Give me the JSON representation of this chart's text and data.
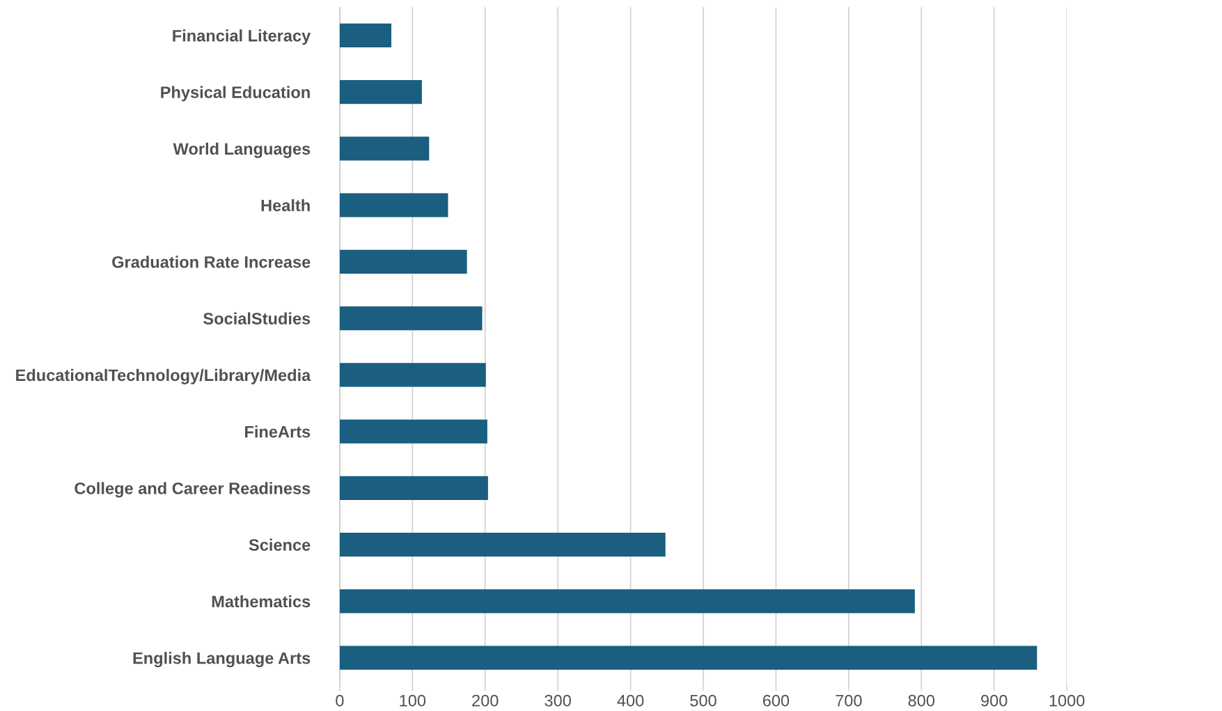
{
  "chart_data": {
    "type": "bar",
    "orientation": "horizontal",
    "categories": [
      "Financial Literacy",
      "Physical Education",
      "World Languages",
      "Health",
      "Graduation Rate Increase",
      "SocialStudies",
      "EducationalTechnology/Library/Media",
      "FineArts",
      "College and Career Readiness",
      "Science",
      "Mathematics",
      "English Language Arts"
    ],
    "series": [
      {
        "color": "#1a5e80",
        "values": [
          71,
          113,
          123,
          149,
          175,
          196,
          201,
          203,
          204,
          448,
          791,
          959
        ]
      }
    ],
    "xlim": [
      0,
      1000
    ],
    "xticks": [
      0,
      100,
      200,
      300,
      400,
      500,
      600,
      700,
      800,
      900,
      1000
    ],
    "grid": "x"
  }
}
